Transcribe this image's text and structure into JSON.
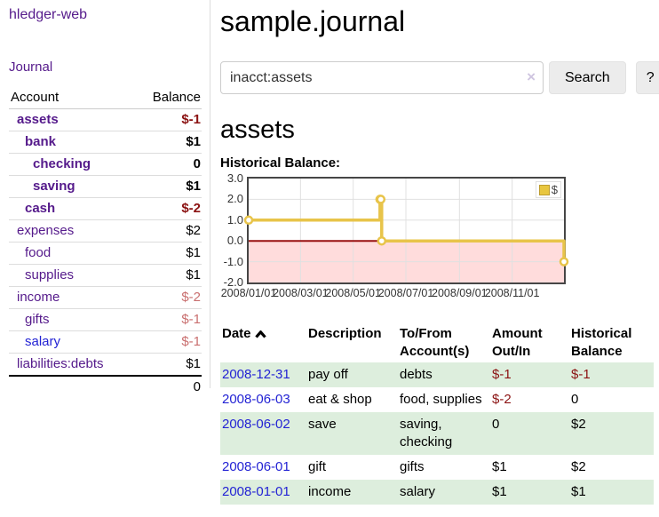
{
  "app": {
    "brand": "hledger-web",
    "nav": {
      "journal": "Journal"
    }
  },
  "sidebar": {
    "header": {
      "account": "Account",
      "balance": "Balance"
    },
    "accounts": [
      {
        "label": "assets",
        "level": 0,
        "bold": true,
        "link": "purple",
        "balance": "$-1",
        "balance_style": "neg-strong"
      },
      {
        "label": "bank",
        "level": 1,
        "bold": true,
        "link": "purple",
        "balance": "$1",
        "balance_style": "pos"
      },
      {
        "label": "checking",
        "level": 2,
        "bold": true,
        "link": "purple",
        "balance": "0",
        "balance_style": "pos"
      },
      {
        "label": "saving",
        "level": 2,
        "bold": true,
        "link": "purple",
        "balance": "$1",
        "balance_style": "pos"
      },
      {
        "label": "cash",
        "level": 1,
        "bold": true,
        "link": "purple",
        "balance": "$-2",
        "balance_style": "neg-strong"
      },
      {
        "label": "expenses",
        "level": 0,
        "bold": false,
        "link": "purple",
        "balance": "$2",
        "balance_style": "pos"
      },
      {
        "label": "food",
        "level": 1,
        "bold": false,
        "link": "purple",
        "balance": "$1",
        "balance_style": "pos"
      },
      {
        "label": "supplies",
        "level": 1,
        "bold": false,
        "link": "purple",
        "balance": "$1",
        "balance_style": "pos"
      },
      {
        "label": "income",
        "level": 0,
        "bold": false,
        "link": "purple",
        "balance": "$-2",
        "balance_style": "neg-soft"
      },
      {
        "label": "gifts",
        "level": 1,
        "bold": false,
        "link": "purple",
        "balance": "$-1",
        "balance_style": "neg-soft"
      },
      {
        "label": "salary",
        "level": 1,
        "bold": false,
        "link": "blue",
        "balance": "$-1",
        "balance_style": "neg-soft"
      },
      {
        "label": "liabilities:debts",
        "level": 0,
        "bold": false,
        "link": "purple",
        "balance": "$1",
        "balance_style": "pos"
      }
    ],
    "total": "0"
  },
  "main": {
    "title": "sample.journal",
    "search": {
      "value": "inacct:assets",
      "clear": "×",
      "button": "Search",
      "help": "?"
    },
    "account_heading": "assets",
    "chart_label": "Historical Balance:"
  },
  "chart_data": {
    "type": "line",
    "step": true,
    "title": "Historical Balance",
    "series": [
      {
        "name": "$",
        "color": "#e8c44a",
        "points": [
          [
            "2008-01-01",
            1
          ],
          [
            "2008-06-01",
            2
          ],
          [
            "2008-06-02",
            2
          ],
          [
            "2008-06-03",
            0
          ],
          [
            "2008-12-31",
            -1
          ]
        ]
      }
    ],
    "xrange": [
      "2008-01-01",
      "2008-12-31"
    ],
    "ylim": [
      -2,
      3
    ],
    "yticks": [
      "3.0",
      "2.0",
      "1.0",
      "0.0",
      "-1.0",
      "-2.0"
    ],
    "xticks": [
      "2008/01/01",
      "2008/03/01",
      "2008/05/01",
      "2008/07/01",
      "2008/09/01",
      "2008/11/01"
    ],
    "grid": true,
    "legend": "$",
    "legend_position": "top-right",
    "negative_fill": "#ffdcdc",
    "zero_line_color": "#991111"
  },
  "register": {
    "headers": {
      "date": "Date",
      "description": "Description",
      "accounts": "To/From Account(s)",
      "amount": "Amount Out/In",
      "balance": "Historical Balance"
    },
    "rows": [
      {
        "date": "2008-12-31",
        "description": "pay off",
        "accounts": "debts",
        "amount": "$-1",
        "amount_neg": true,
        "balance": "$-1",
        "balance_neg": true
      },
      {
        "date": "2008-06-03",
        "description": "eat & shop",
        "accounts": "food, supplies",
        "amount": "$-2",
        "amount_neg": true,
        "balance": "0",
        "balance_neg": false
      },
      {
        "date": "2008-06-02",
        "description": "save",
        "accounts": "saving, checking",
        "amount": "0",
        "amount_neg": false,
        "balance": "$2",
        "balance_neg": false
      },
      {
        "date": "2008-06-01",
        "description": "gift",
        "accounts": "gifts",
        "amount": "$1",
        "amount_neg": false,
        "balance": "$2",
        "balance_neg": false
      },
      {
        "date": "2008-01-01",
        "description": "income",
        "accounts": "salary",
        "amount": "$1",
        "amount_neg": false,
        "balance": "$1",
        "balance_neg": false
      }
    ]
  },
  "colors": {
    "link_purple": "#551a8b",
    "link_blue": "#2323d4",
    "negative_strong": "#8b1212",
    "negative_soft": "#c96f6f",
    "row_stripe_green": "#ddeedd",
    "chart_gold": "#e8c44a",
    "chart_negative_fill": "#ffdcdc",
    "chart_zero_line": "#991111"
  }
}
